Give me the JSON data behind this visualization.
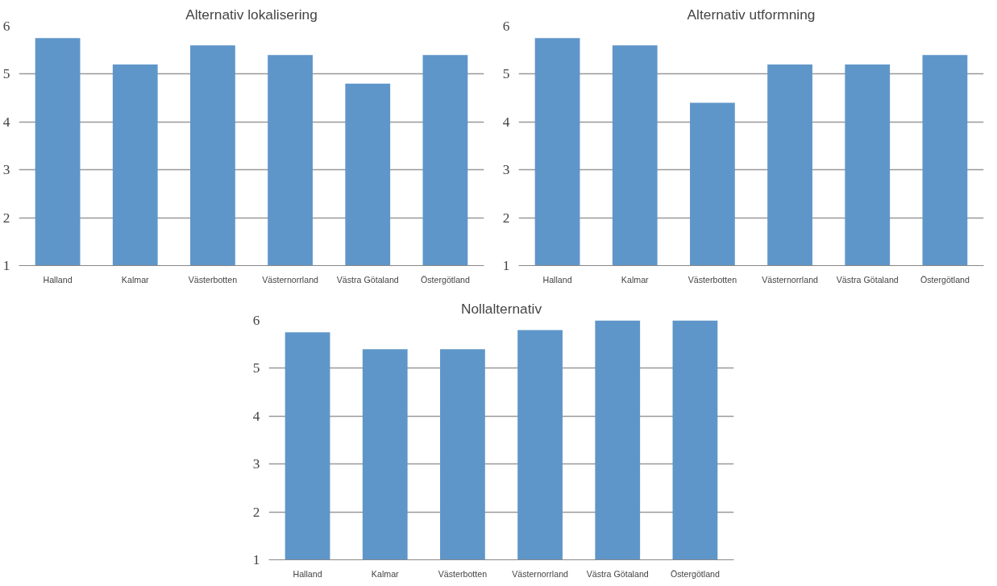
{
  "chart_data": [
    {
      "type": "bar",
      "title": "Alternativ lokalisering",
      "categories": [
        "Halland",
        "Kalmar",
        "Västerbotten",
        "Västernorrland",
        "Västra Götaland",
        "Östergötland"
      ],
      "values": [
        5.75,
        5.2,
        5.6,
        5.4,
        4.8,
        5.4
      ],
      "color": "#5f96c9",
      "ylim": [
        1,
        6
      ],
      "yticks": [
        1,
        2,
        3,
        4,
        5,
        6
      ],
      "grid": "y"
    },
    {
      "type": "bar",
      "title": "Alternativ utformning",
      "categories": [
        "Halland",
        "Kalmar",
        "Västerbotten",
        "Västernorrland",
        "Västra Götaland",
        "Östergötland"
      ],
      "values": [
        5.75,
        5.6,
        4.4,
        5.2,
        5.2,
        5.4
      ],
      "color": "#5f96c9",
      "ylim": [
        1,
        6
      ],
      "yticks": [
        1,
        2,
        3,
        4,
        5,
        6
      ],
      "grid": "y"
    },
    {
      "type": "bar",
      "title": "Nollalternativ",
      "categories": [
        "Halland",
        "Kalmar",
        "Västerbotten",
        "Västernorrland",
        "Västra Götaland",
        "Östergötland"
      ],
      "values": [
        5.75,
        5.4,
        5.4,
        5.8,
        6,
        6
      ],
      "color": "#5f96c9",
      "ylim": [
        1,
        6
      ],
      "yticks": [
        1,
        2,
        3,
        4,
        5,
        6
      ],
      "grid": "y"
    }
  ]
}
